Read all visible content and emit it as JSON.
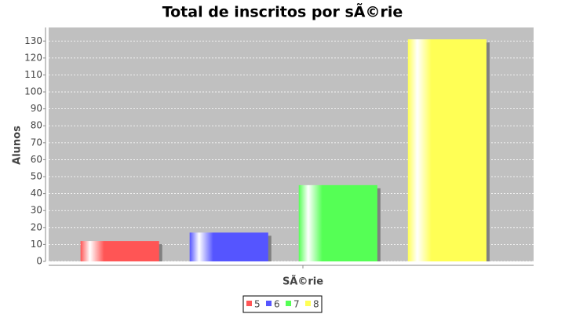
{
  "chart_data": {
    "type": "bar",
    "title": "Total de inscritos por sÃ©rie",
    "x_label": "SÃ©rie",
    "y_label": "Alunos",
    "categories": [
      null
    ],
    "series": [
      {
        "name": "5",
        "color": "#ff5555",
        "values": [
          12
        ]
      },
      {
        "name": "6",
        "color": "#5555ff",
        "values": [
          17
        ]
      },
      {
        "name": "7",
        "color": "#55ff55",
        "values": [
          45
        ]
      },
      {
        "name": "8",
        "color": "#ffff55",
        "values": [
          131
        ]
      }
    ],
    "ylim": [
      0,
      138
    ],
    "yticks": [
      0,
      10,
      20,
      30,
      40,
      50,
      60,
      70,
      80,
      90,
      100,
      110,
      120,
      130
    ],
    "grid": true,
    "legend": "bottom"
  }
}
